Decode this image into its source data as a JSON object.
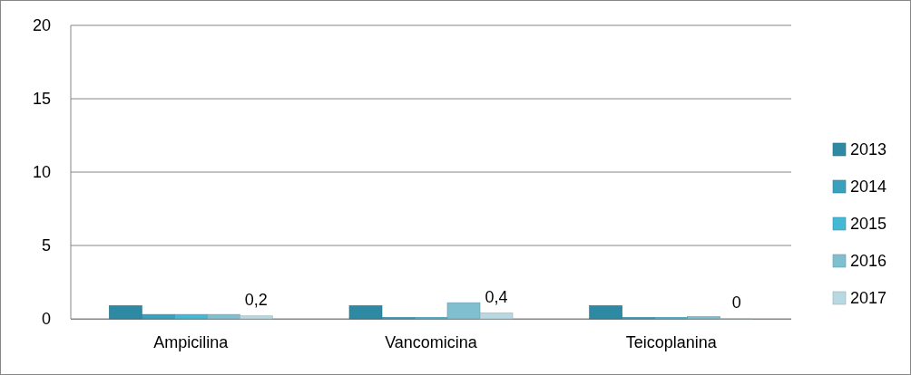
{
  "chart_data": {
    "type": "bar",
    "categories": [
      "Ampicilina",
      "Vancomicina",
      "Teicoplanina"
    ],
    "series": [
      {
        "name": "2013",
        "color": "#2e8aa3",
        "values": [
          0.9,
          0.9,
          0.9
        ]
      },
      {
        "name": "2014",
        "color": "#3aa0bc",
        "values": [
          0.3,
          0.1,
          0.1
        ]
      },
      {
        "name": "2015",
        "color": "#45b8d4",
        "values": [
          0.3,
          0.1,
          0.1
        ]
      },
      {
        "name": "2016",
        "color": "#7fbfd0",
        "values": [
          0.3,
          1.1,
          0.15
        ]
      },
      {
        "name": "2017",
        "color": "#b8d9e2",
        "values": [
          0.2,
          0.4,
          0
        ],
        "value_labels": [
          "0,2",
          "0,4",
          "0"
        ]
      }
    ],
    "ylim": [
      0,
      20
    ],
    "yticks": [
      0,
      5,
      10,
      15,
      20
    ],
    "grid": "y",
    "legend": "right"
  }
}
